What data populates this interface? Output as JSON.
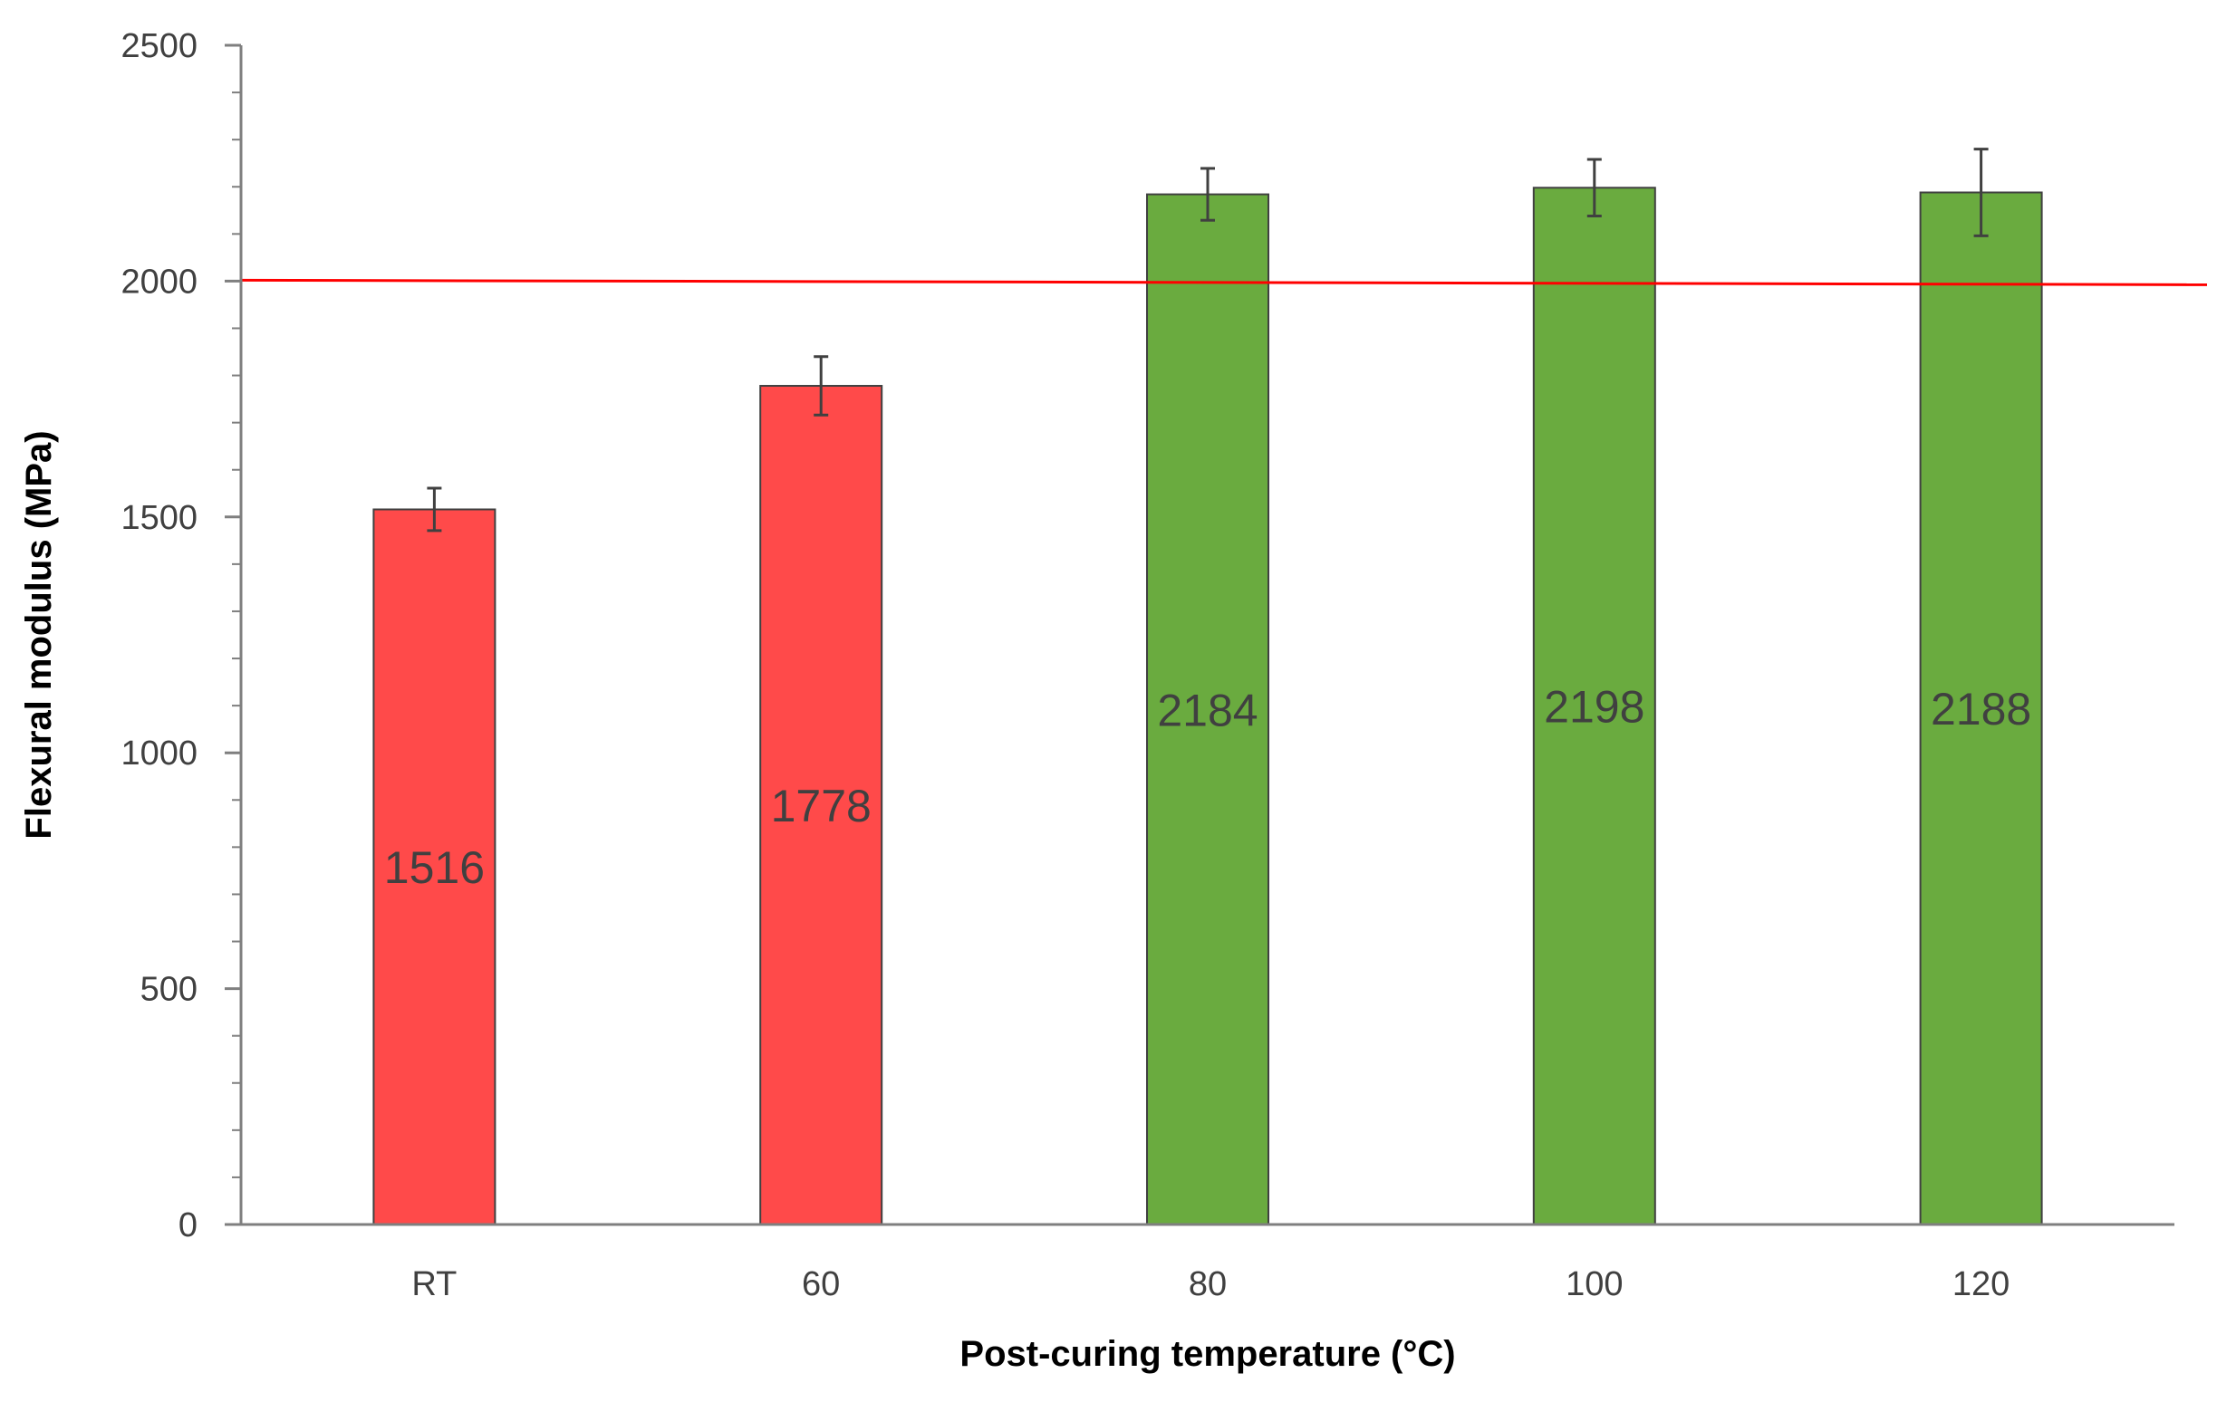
{
  "chart_data": {
    "type": "bar",
    "categories": [
      "RT",
      "60",
      "80",
      "100",
      "120"
    ],
    "values": [
      1516,
      1778,
      2184,
      2198,
      2188
    ],
    "error": [
      45,
      62,
      55,
      60,
      92
    ],
    "bar_colors": [
      "#ff4a4a",
      "#ff4a4a",
      "#6aab3f",
      "#6aab3f",
      "#6aab3f"
    ],
    "data_labels": [
      "1516",
      "1778",
      "2184",
      "2198",
      "2188"
    ],
    "xlabel": "Post-curing temperature (°C)",
    "ylabel": "Flexural modulus (MPa)",
    "ylim": [
      0,
      2500
    ],
    "yticks": [
      0,
      500,
      1000,
      1500,
      2000,
      2500
    ],
    "ytick_labels": [
      "0",
      "500",
      "1000",
      "1500",
      "2000",
      "2500"
    ],
    "reference_line": {
      "value": 2000,
      "color": "#ff0000"
    },
    "grid": false,
    "legend": "none"
  }
}
